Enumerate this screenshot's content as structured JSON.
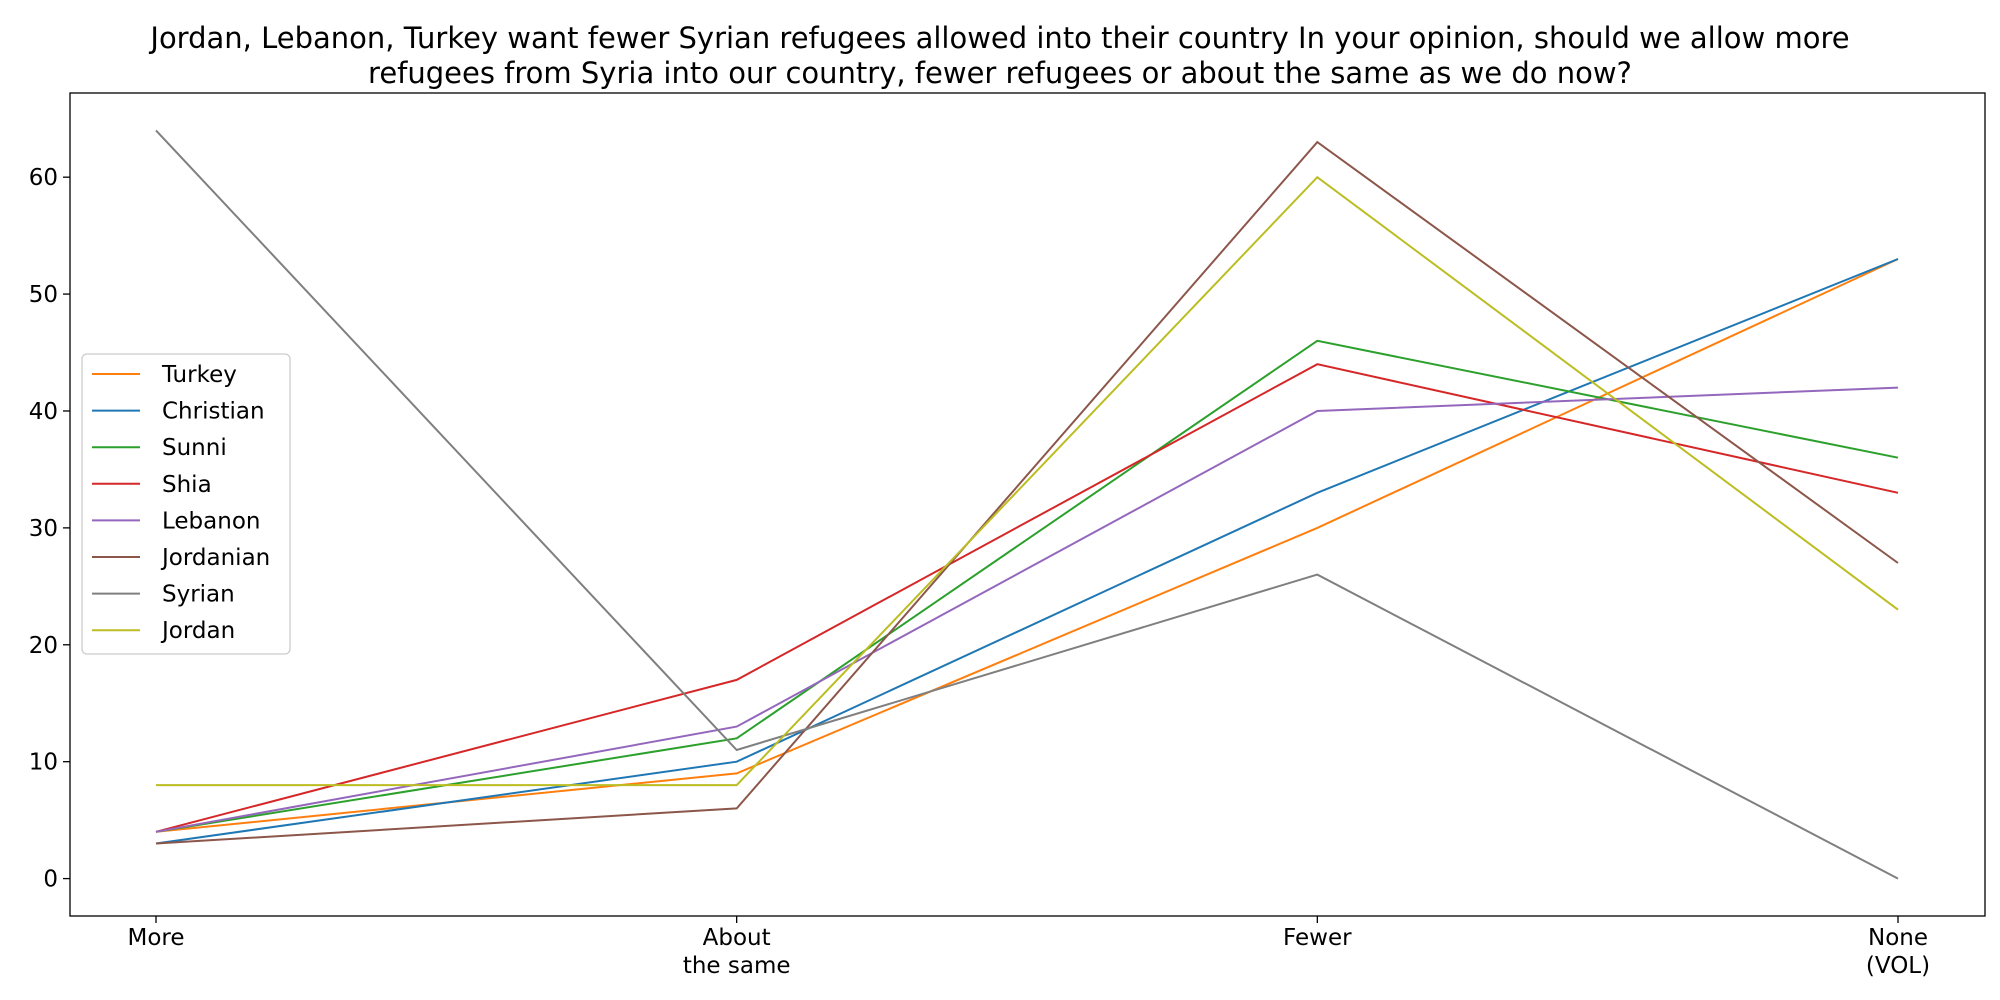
{
  "chart_data": {
    "type": "line",
    "title_lines": [
      "Jordan, Lebanon, Turkey want fewer Syrian refugees allowed into their country In your opinion, should we allow more",
      "refugees from Syria into our country, fewer refugees or about the same as we do now?"
    ],
    "categories": [
      [
        "More"
      ],
      [
        "About",
        "the same"
      ],
      [
        "Fewer"
      ],
      [
        "None",
        "(VOL)"
      ]
    ],
    "ylim": [
      -3.2,
      67.2
    ],
    "yticks": [
      0,
      10,
      20,
      30,
      40,
      50,
      60
    ],
    "grid": false,
    "legend_position": "center-left",
    "series": [
      {
        "name": "Turkey",
        "color": "#ff7f0e",
        "values": [
          4,
          9,
          30,
          53
        ]
      },
      {
        "name": "Christian",
        "color": "#1f77b4",
        "values": [
          3,
          10,
          33,
          53
        ]
      },
      {
        "name": "Sunni",
        "color": "#2ca02c",
        "values": [
          4,
          12,
          46,
          36
        ]
      },
      {
        "name": "Shia",
        "color": "#d62728",
        "values": [
          4,
          17,
          44,
          33
        ]
      },
      {
        "name": "Lebanon",
        "color": "#9467bd",
        "values": [
          4,
          13,
          40,
          42
        ]
      },
      {
        "name": "Jordanian",
        "color": "#8c564b",
        "values": [
          3,
          6,
          63,
          27
        ]
      },
      {
        "name": "Syrian",
        "color": "#7f7f7f",
        "values": [
          64,
          11,
          26,
          0
        ]
      },
      {
        "name": "Jordan",
        "color": "#bcbd22",
        "values": [
          8,
          8,
          60,
          23
        ]
      }
    ]
  }
}
